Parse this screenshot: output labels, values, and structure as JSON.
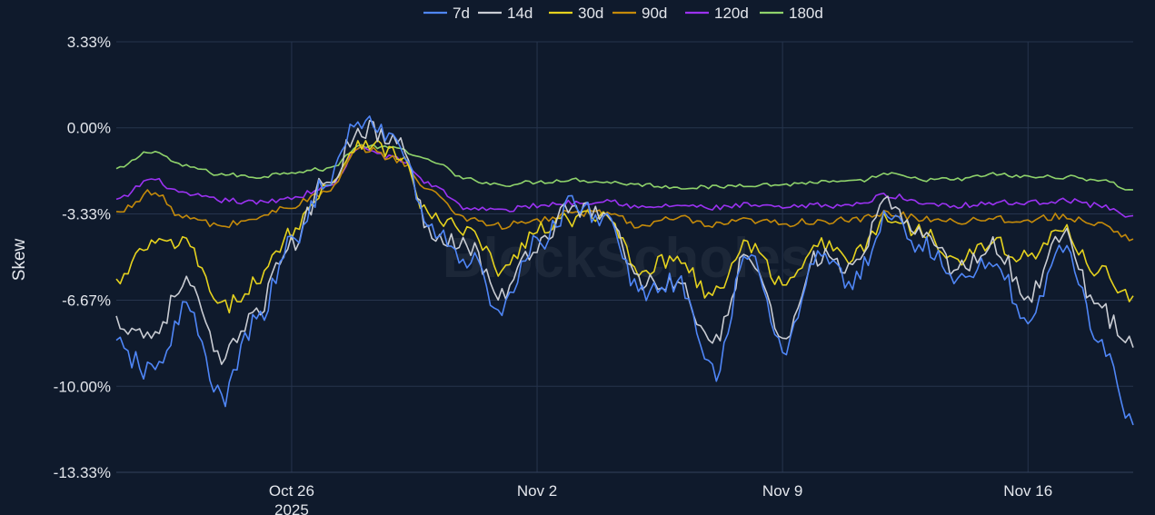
{
  "chart_data": {
    "type": "line",
    "title": "",
    "xlabel": "",
    "ylabel": "Skew",
    "watermark": "BlockScholes",
    "ylim": [
      -13.33,
      3.33
    ],
    "xlim": [
      "2025-10-21",
      "2025-11-19"
    ],
    "grid": true,
    "legend_position": "top",
    "y_ticks": [
      {
        "value": 3.33,
        "label": "3.33%"
      },
      {
        "value": 0,
        "label": "0.00%"
      },
      {
        "value": -3.33,
        "label": "-3.33%"
      },
      {
        "value": -6.67,
        "label": "-6.67%"
      },
      {
        "value": -10,
        "label": "-10.00%"
      },
      {
        "value": -13.33,
        "label": "-13.33%"
      }
    ],
    "x_ticks": [
      {
        "date": "2025-10-26",
        "label": "Oct 26",
        "sublabel": "2025"
      },
      {
        "date": "2025-11-02",
        "label": "Nov 2",
        "sublabel": ""
      },
      {
        "date": "2025-11-09",
        "label": "Nov 9",
        "sublabel": ""
      },
      {
        "date": "2025-11-16",
        "label": "Nov 16",
        "sublabel": ""
      }
    ],
    "x": [
      "2025-10-21",
      "2025-10-22",
      "2025-10-23",
      "2025-10-24",
      "2025-10-25",
      "2025-10-26",
      "2025-10-27",
      "2025-10-28",
      "2025-10-29",
      "2025-10-30",
      "2025-10-31",
      "2025-11-01",
      "2025-11-02",
      "2025-11-03",
      "2025-11-04",
      "2025-11-05",
      "2025-11-06",
      "2025-11-07",
      "2025-11-08",
      "2025-11-09",
      "2025-11-10",
      "2025-11-11",
      "2025-11-12",
      "2025-11-13",
      "2025-11-14",
      "2025-11-15",
      "2025-11-16",
      "2025-11-17",
      "2025-11-18",
      "2025-11-19"
    ],
    "series": [
      {
        "name": "7d",
        "color": "#4f86f7",
        "values": [
          -8.5,
          -9.5,
          -7.0,
          -10.5,
          -7.5,
          -4.5,
          -2.0,
          0.3,
          -0.5,
          -4.0,
          -5.0,
          -7.0,
          -4.5,
          -3.0,
          -3.5,
          -6.5,
          -6.0,
          -9.5,
          -5.0,
          -8.5,
          -5.0,
          -6.0,
          -3.5,
          -4.5,
          -6.0,
          -5.0,
          -7.5,
          -4.5,
          -8.0,
          -11.5
        ]
      },
      {
        "name": "14d",
        "color": "#c9ccd3",
        "values": [
          -7.5,
          -8.0,
          -6.0,
          -9.0,
          -7.0,
          -4.5,
          -2.0,
          0.0,
          -0.5,
          -4.0,
          -4.5,
          -6.5,
          -4.5,
          -3.0,
          -3.5,
          -6.0,
          -6.0,
          -8.5,
          -5.0,
          -8.0,
          -5.0,
          -5.5,
          -3.0,
          -4.0,
          -5.5,
          -4.5,
          -6.5,
          -4.0,
          -7.0,
          -8.5
        ]
      },
      {
        "name": "30d",
        "color": "#e5d21e",
        "values": [
          -6.0,
          -4.5,
          -4.5,
          -7.0,
          -6.0,
          -4.0,
          -2.2,
          -0.5,
          -1.0,
          -3.5,
          -4.0,
          -5.5,
          -4.0,
          -3.5,
          -3.5,
          -5.5,
          -5.0,
          -6.5,
          -4.5,
          -6.0,
          -4.5,
          -5.0,
          -3.5,
          -4.0,
          -5.0,
          -4.5,
          -5.0,
          -4.0,
          -5.5,
          -6.5
        ]
      },
      {
        "name": "90d",
        "color": "#c48a0a",
        "values": [
          -3.3,
          -2.5,
          -3.5,
          -3.8,
          -3.5,
          -3.0,
          -2.5,
          -0.8,
          -1.2,
          -2.5,
          -3.5,
          -3.8,
          -3.6,
          -3.3,
          -3.3,
          -3.8,
          -3.5,
          -3.8,
          -3.6,
          -3.7,
          -3.6,
          -3.6,
          -3.3,
          -3.5,
          -3.6,
          -3.5,
          -3.6,
          -3.4,
          -3.8,
          -4.3
        ]
      },
      {
        "name": "120d",
        "color": "#9b32f2",
        "values": [
          -2.8,
          -2.0,
          -2.6,
          -2.8,
          -2.9,
          -2.7,
          -2.3,
          -0.8,
          -1.2,
          -2.2,
          -3.1,
          -3.2,
          -3.0,
          -2.9,
          -2.8,
          -3.1,
          -3.0,
          -3.1,
          -3.0,
          -3.1,
          -3.0,
          -3.0,
          -2.6,
          -2.9,
          -3.0,
          -2.9,
          -2.9,
          -2.8,
          -3.0,
          -3.4
        ]
      },
      {
        "name": "180d",
        "color": "#8fd36b",
        "values": [
          -1.6,
          -0.9,
          -1.5,
          -1.8,
          -1.9,
          -1.7,
          -1.6,
          -0.7,
          -0.8,
          -1.3,
          -2.0,
          -2.2,
          -2.1,
          -2.0,
          -2.1,
          -2.2,
          -2.3,
          -2.3,
          -2.2,
          -2.2,
          -2.1,
          -2.1,
          -1.8,
          -2.0,
          -2.0,
          -1.8,
          -1.9,
          -1.9,
          -2.0,
          -2.4
        ]
      }
    ]
  }
}
